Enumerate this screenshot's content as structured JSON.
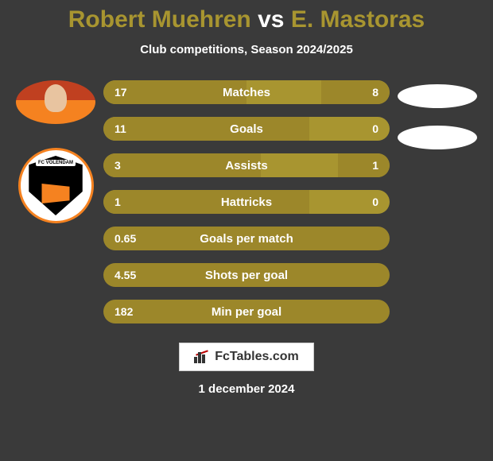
{
  "title": {
    "player_left": "Robert Muehren",
    "vs": "vs",
    "player_right": "E. Mastoras",
    "left_color": "#a89530",
    "right_color": "#a89530",
    "vs_color": "#ffffff",
    "fontsize": 30
  },
  "subtitle": "Club competitions, Season 2024/2025",
  "background_color": "#3a3a3a",
  "bar_base_color": "#a89530",
  "bar_fill_color": "#9c872a",
  "text_color": "#ffffff",
  "club_name": "FC VOLENDAM",
  "bars": [
    {
      "label": "Matches",
      "left": "17",
      "right": "8",
      "left_pct": 50,
      "right_pct": 24
    },
    {
      "label": "Goals",
      "left": "11",
      "right": "0",
      "left_pct": 72,
      "right_pct": 0
    },
    {
      "label": "Assists",
      "left": "3",
      "right": "1",
      "left_pct": 55,
      "right_pct": 18
    },
    {
      "label": "Hattricks",
      "left": "1",
      "right": "0",
      "left_pct": 72,
      "right_pct": 0
    },
    {
      "label": "Goals per match",
      "left": "0.65",
      "right": "",
      "left_pct": 100,
      "right_pct": 0
    },
    {
      "label": "Shots per goal",
      "left": "4.55",
      "right": "",
      "left_pct": 100,
      "right_pct": 0
    },
    {
      "label": "Min per goal",
      "left": "182",
      "right": "",
      "left_pct": 100,
      "right_pct": 0
    }
  ],
  "brand": "FcTables.com",
  "date": "1 december 2024"
}
